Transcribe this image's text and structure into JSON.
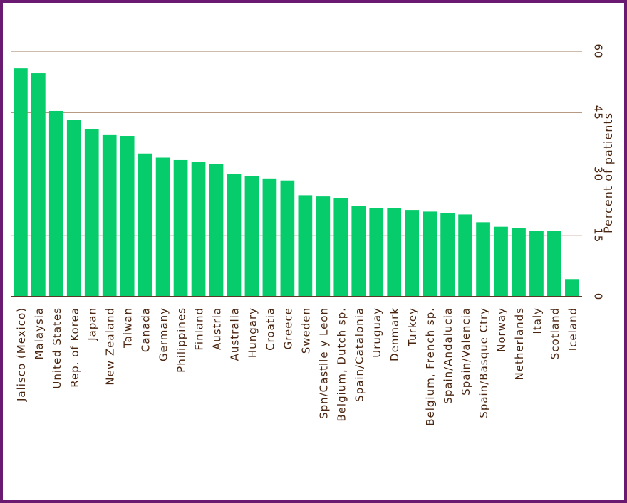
{
  "chart_data": {
    "type": "bar",
    "title": "",
    "xlabel": "",
    "ylabel": "Percent of patients",
    "ylim": [
      0,
      60
    ],
    "yticks": [
      "0",
      "15",
      "30",
      "45",
      "60"
    ],
    "grid": true,
    "bar_color": "#06cc6b",
    "categories": [
      "Jalisco (Mexico)",
      "Malaysia",
      "United States",
      "Rep. of Korea",
      "Japan",
      "New Zealand",
      "Taiwan",
      "Canada",
      "Germany",
      "Philippines",
      "Finland",
      "Austria",
      "Australia",
      "Hungary",
      "Croatia",
      "Greece",
      "Sweden",
      "Spn/Castile y Leon",
      "Belgium, Dutch sp.",
      "Spain/Catalonia",
      "Uruguay",
      "Denmark",
      "Turkey",
      "Belgium, French sp.",
      "Spain/Andalucia",
      "Spain/Valencia",
      "Spain/Basque Ctry",
      "Norway",
      "Netherlands",
      "Italy",
      "Scotland",
      "Iceland"
    ],
    "values": [
      55.8,
      54.6,
      45.4,
      43.3,
      41.0,
      39.5,
      39.3,
      35.0,
      34.0,
      33.4,
      32.9,
      32.5,
      30.0,
      29.4,
      28.9,
      28.4,
      24.8,
      24.5,
      24.0,
      22.1,
      21.6,
      21.6,
      21.2,
      20.8,
      20.5,
      20.1,
      18.2,
      17.1,
      16.8,
      16.1,
      16.0,
      4.3
    ]
  }
}
